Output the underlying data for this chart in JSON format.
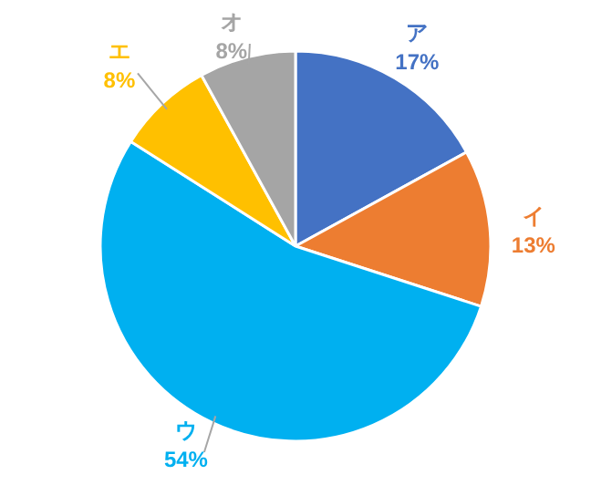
{
  "chart_data": {
    "type": "pie",
    "categories": [
      "ア",
      "イ",
      "ウ",
      "エ",
      "オ"
    ],
    "values": [
      17,
      13,
      54,
      8,
      8
    ],
    "colors": [
      "#4472c4",
      "#ed7d31",
      "#00b0f0",
      "#ffc000",
      "#a5a5a5"
    ],
    "value_labels": [
      "17%",
      "13%",
      "54%",
      "8%",
      "8%"
    ]
  }
}
